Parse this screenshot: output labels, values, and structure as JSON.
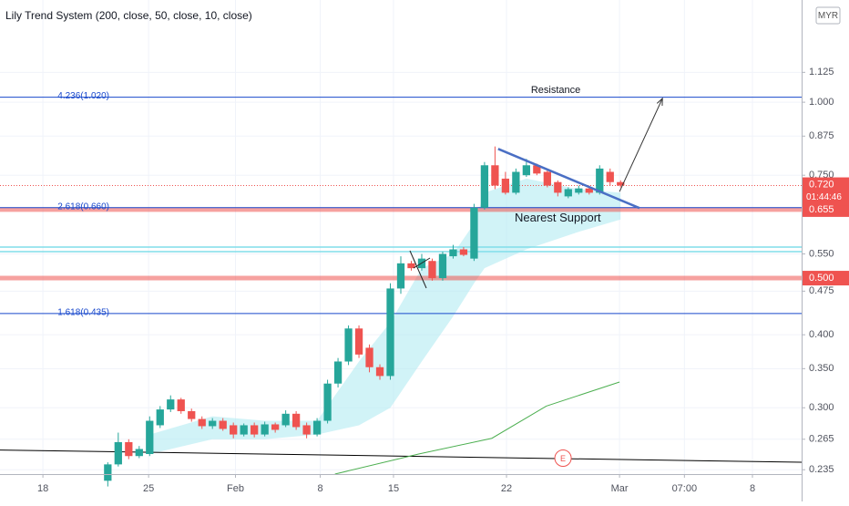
{
  "chart_data": {
    "type": "candlestick",
    "title": "Lily Trend System (200, close, 50, close, 10, close)",
    "currency": "MYR",
    "countdown": "01:44:46",
    "x": [
      0,
      1,
      2,
      3,
      4,
      5,
      6,
      7,
      8,
      9,
      10,
      11,
      12,
      13,
      14,
      15,
      16,
      17,
      18,
      19,
      20,
      21,
      22,
      23,
      24,
      25,
      26,
      27,
      28,
      29,
      30,
      31,
      32,
      33,
      34,
      35,
      36,
      37,
      38,
      39,
      40,
      41,
      42,
      43,
      44,
      45,
      46,
      47,
      48,
      49
    ],
    "open": [
      0.225,
      0.24,
      0.262,
      0.248,
      0.25,
      0.28,
      0.298,
      0.31,
      0.296,
      0.287,
      0.279,
      0.285,
      0.28,
      0.27,
      0.28,
      0.27,
      0.281,
      0.28,
      0.293,
      0.28,
      0.27,
      0.285,
      0.33,
      0.36,
      0.41,
      0.38,
      0.352,
      0.34,
      0.48,
      0.53,
      0.52,
      0.535,
      0.5,
      0.545,
      0.56,
      0.54,
      0.66,
      0.78,
      0.74,
      0.7,
      0.75,
      0.78,
      0.76,
      0.73,
      0.69,
      0.7,
      0.712,
      0.7,
      0.76,
      0.73
    ],
    "high": [
      0.242,
      0.272,
      0.265,
      0.258,
      0.29,
      0.302,
      0.315,
      0.312,
      0.299,
      0.29,
      0.288,
      0.288,
      0.283,
      0.282,
      0.283,
      0.284,
      0.283,
      0.297,
      0.296,
      0.283,
      0.288,
      0.335,
      0.365,
      0.415,
      0.415,
      0.385,
      0.356,
      0.49,
      0.545,
      0.535,
      0.55,
      0.54,
      0.555,
      0.57,
      0.565,
      0.67,
      0.79,
      0.84,
      0.76,
      0.77,
      0.8,
      0.785,
      0.765,
      0.735,
      0.715,
      0.72,
      0.72,
      0.78,
      0.77,
      0.735
    ],
    "low": [
      0.22,
      0.238,
      0.245,
      0.246,
      0.248,
      0.277,
      0.295,
      0.293,
      0.284,
      0.276,
      0.276,
      0.274,
      0.266,
      0.268,
      0.267,
      0.268,
      0.272,
      0.278,
      0.275,
      0.266,
      0.268,
      0.282,
      0.325,
      0.355,
      0.365,
      0.345,
      0.335,
      0.335,
      0.47,
      0.515,
      0.515,
      0.495,
      0.495,
      0.54,
      0.545,
      0.535,
      0.655,
      0.71,
      0.695,
      0.695,
      0.745,
      0.75,
      0.715,
      0.69,
      0.685,
      0.695,
      0.695,
      0.695,
      0.72,
      0.715
    ],
    "close": [
      0.24,
      0.262,
      0.248,
      0.255,
      0.285,
      0.298,
      0.31,
      0.296,
      0.287,
      0.279,
      0.285,
      0.276,
      0.27,
      0.28,
      0.27,
      0.281,
      0.275,
      0.293,
      0.278,
      0.27,
      0.285,
      0.33,
      0.36,
      0.41,
      0.37,
      0.352,
      0.34,
      0.48,
      0.53,
      0.52,
      0.54,
      0.5,
      0.55,
      0.56,
      0.548,
      0.66,
      0.78,
      0.72,
      0.7,
      0.76,
      0.78,
      0.755,
      0.72,
      0.7,
      0.71,
      0.712,
      0.7,
      0.77,
      0.73,
      0.72
    ],
    "up_color": "#26a69a",
    "down_color": "#ef5350",
    "xlim": [
      -10.3,
      66.3
    ],
    "xticks": [
      {
        "value": -6.2,
        "label": "18"
      },
      {
        "value": 3.9,
        "label": "25"
      },
      {
        "value": 12.2,
        "label": "Feb"
      },
      {
        "value": 20.3,
        "label": "8"
      },
      {
        "value": 27.3,
        "label": "15"
      },
      {
        "value": 38.1,
        "label": "22"
      },
      {
        "value": 48.9,
        "label": "Mar"
      },
      {
        "value": 55.1,
        "label": "07:00"
      },
      {
        "value": 61.6,
        "label": "8"
      }
    ],
    "ylim": [
      0.231,
      1.496
    ],
    "log": true,
    "grid": true,
    "yticks": [
      1.125,
      {
        "value": 1,
        "label": "1.000"
      },
      0.875,
      {
        "value": 0.75,
        "label": "0.750"
      },
      {
        "value": 0.55,
        "label": "0.550"
      },
      0.475,
      {
        "value": 0.4,
        "label": "0.400"
      },
      {
        "value": 0.35,
        "label": "0.350"
      },
      {
        "value": 0.3,
        "label": "0.300"
      },
      0.265,
      0.235
    ],
    "last_price": {
      "value": 0.72,
      "label": "0.720",
      "color": "#ef5350"
    },
    "levels": [
      {
        "value": 1.02,
        "label": "4.236(1.020)",
        "color": "#1848cc"
      },
      {
        "value": 0.66,
        "label": "2.618(0.660)",
        "color": "#1848cc"
      },
      {
        "value": 0.435,
        "label": "1.618(0.435)",
        "color": "#1848cc"
      }
    ],
    "zones": [
      {
        "value": 0.655,
        "label": "0.655",
        "color": "#ef5350"
      },
      {
        "value": 0.5,
        "label": "0.500",
        "color": "#ef5350"
      }
    ],
    "bands": [
      {
        "value": 0.565,
        "color": "#80deea"
      },
      {
        "value": 0.555,
        "color": "#80deea"
      }
    ],
    "cloud": {
      "color": "#b2ebf2",
      "x": [
        4,
        10,
        15,
        20,
        24,
        27,
        30,
        33,
        35,
        36,
        40,
        45,
        49
      ],
      "upper": [
        0.27,
        0.29,
        0.285,
        0.285,
        0.36,
        0.42,
        0.52,
        0.55,
        0.62,
        0.7,
        0.74,
        0.71,
        0.7
      ],
      "lower": [
        0.25,
        0.265,
        0.265,
        0.27,
        0.28,
        0.3,
        0.36,
        0.43,
        0.49,
        0.52,
        0.56,
        0.6,
        0.63
      ]
    },
    "lines": [
      {
        "color": "#000000",
        "x": [
          -10.3,
          66.3
        ],
        "values": [
          0.254,
          0.242
        ]
      },
      {
        "color": "#4caf50",
        "x": [
          21.7,
          29.7,
          36.7,
          41.9,
          48.9
        ],
        "values": [
          0.231,
          0.25,
          0.266,
          0.302,
          0.332
        ]
      }
    ],
    "trendline": {
      "color": "#4a6fc4",
      "x": [
        37.3,
        50.8
      ],
      "values": [
        0.832,
        0.659
      ]
    },
    "arrow": {
      "color": "#333333",
      "x": [
        48.9,
        53
      ],
      "values": [
        0.703,
        1.015
      ]
    },
    "annotations": [
      {
        "text": "Resistance",
        "x": 42.8,
        "y": 1.048
      },
      {
        "text": "Nearest Support",
        "x": 43,
        "y": 0.633
      }
    ],
    "events": [
      {
        "label": "E",
        "x": 43.5,
        "y": 0.246,
        "color": "#ef5350"
      }
    ]
  }
}
